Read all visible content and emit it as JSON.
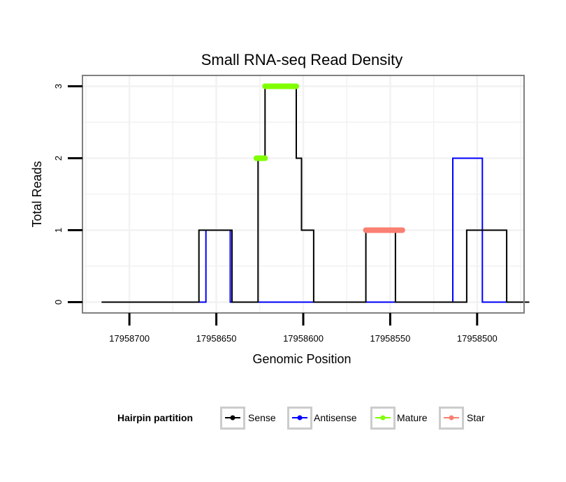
{
  "chart_data": {
    "type": "line",
    "title": "Small RNA-seq Read Density",
    "xlabel": "Genomic Position",
    "ylabel": "Total Reads",
    "xlim": [
      17958727,
      17958473
    ],
    "x_reversed": true,
    "ylim": [
      -0.15,
      3.15
    ],
    "yticks": [
      0,
      1,
      2,
      3
    ],
    "xticks": [
      17958700,
      17958650,
      17958600,
      17958550,
      17958500
    ],
    "xtick_labels": [
      "17958700",
      "17958650",
      "17958600",
      "17958550",
      "17958500"
    ],
    "series": [
      {
        "name": "Sense",
        "color": "#000000",
        "points": [
          [
            17958716,
            0
          ],
          [
            17958660,
            0
          ],
          [
            17958660,
            1
          ],
          [
            17958641,
            1
          ],
          [
            17958641,
            0
          ],
          [
            17958626,
            0
          ],
          [
            17958626,
            2
          ],
          [
            17958622,
            2
          ],
          [
            17958622,
            3
          ],
          [
            17958604,
            3
          ],
          [
            17958604,
            2
          ],
          [
            17958601,
            2
          ],
          [
            17958601,
            1
          ],
          [
            17958594,
            1
          ],
          [
            17958594,
            0
          ],
          [
            17958564,
            0
          ],
          [
            17958564,
            1
          ],
          [
            17958547,
            1
          ],
          [
            17958547,
            0
          ],
          [
            17958506,
            0
          ],
          [
            17958506,
            1
          ],
          [
            17958483,
            1
          ],
          [
            17958483,
            0
          ],
          [
            17958470,
            0
          ]
        ]
      },
      {
        "name": "Antisense",
        "color": "#0000ff",
        "points": [
          [
            17958716,
            0
          ],
          [
            17958656,
            0
          ],
          [
            17958656,
            1
          ],
          [
            17958642,
            1
          ],
          [
            17958642,
            0
          ],
          [
            17958514,
            0
          ],
          [
            17958514,
            2
          ],
          [
            17958497,
            2
          ],
          [
            17958497,
            0
          ],
          [
            17958470,
            0
          ]
        ]
      },
      {
        "name": "Mature",
        "color": "#7fff00",
        "segments": [
          {
            "x_start": 17958627,
            "x_end": 17958622,
            "y": 2
          },
          {
            "x_start": 17958622,
            "x_end": 17958604,
            "y": 3
          }
        ]
      },
      {
        "name": "Star",
        "color": "#fa8072",
        "segments": [
          {
            "x_start": 17958564,
            "x_end": 17958543,
            "y": 1
          }
        ]
      }
    ],
    "legend": {
      "title": "Hairpin partition",
      "position": "bottom",
      "entries": [
        "Sense",
        "Antisense",
        "Mature",
        "Star"
      ]
    }
  },
  "colors": {
    "panel_border": "#808080",
    "grid": "#f2f2f2",
    "legend_box": "#cccccc"
  }
}
